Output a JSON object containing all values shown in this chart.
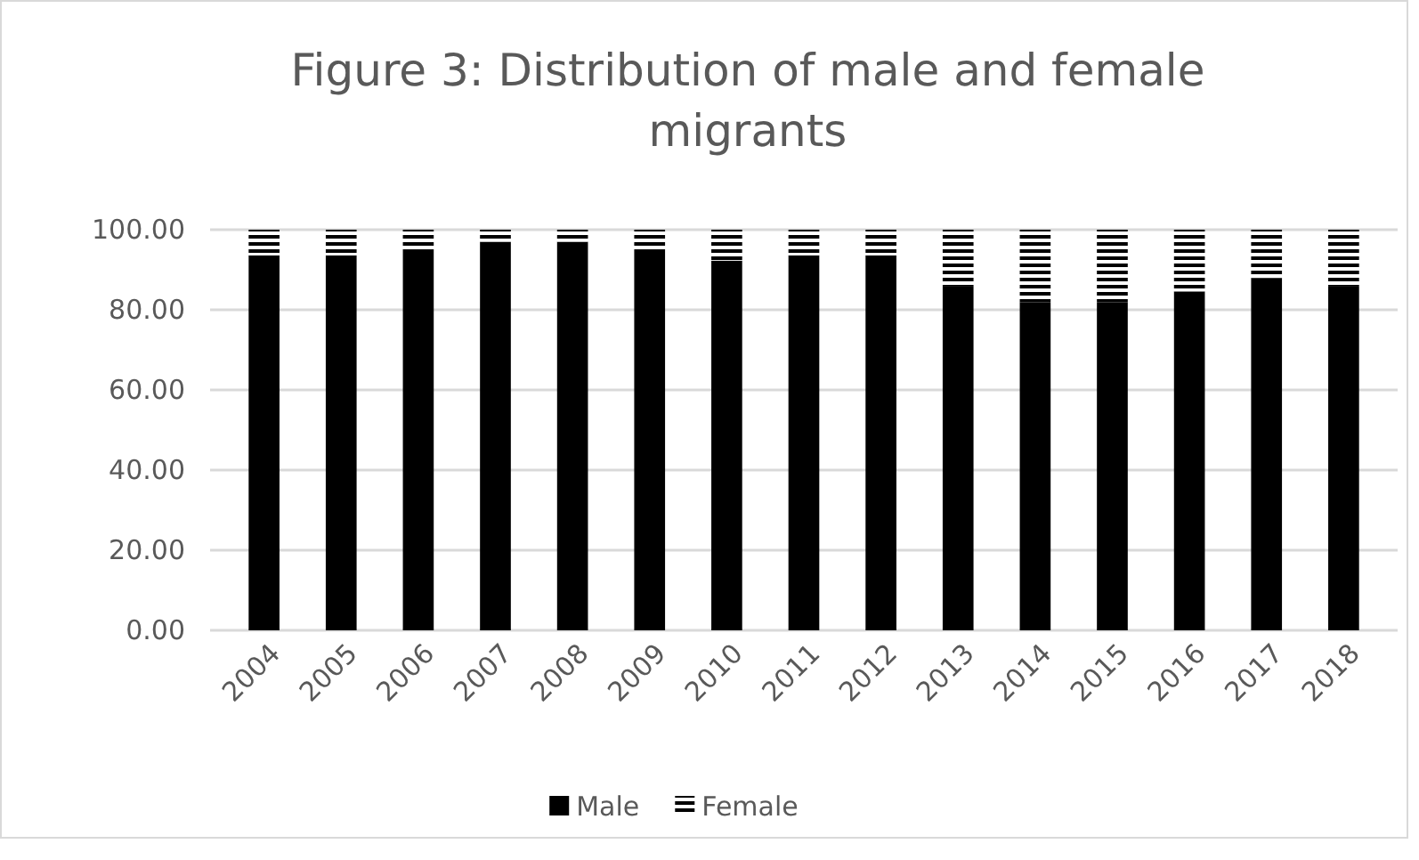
{
  "chart_data": {
    "type": "bar",
    "title": "Figure 3: Distribution of male and female migrants",
    "categories": [
      "2004",
      "2005",
      "2006",
      "2007",
      "2008",
      "2009",
      "2010",
      "2011",
      "2012",
      "2013",
      "2014",
      "2015",
      "2016",
      "2017",
      "2018"
    ],
    "series": [
      {
        "name": "Male",
        "color": "#000000",
        "values": [
          93.6,
          93.6,
          95.1,
          97.0,
          97.0,
          95.1,
          92.3,
          93.6,
          93.6,
          85.8,
          81.9,
          81.9,
          84.6,
          87.9,
          85.8
        ]
      },
      {
        "name": "Female",
        "color": "#000000",
        "values": [
          6.4,
          6.4,
          4.9,
          3.0,
          3.0,
          4.9,
          7.7,
          6.4,
          6.4,
          14.2,
          18.1,
          18.1,
          15.4,
          12.1,
          14.2
        ]
      }
    ],
    "stacked": true,
    "ylim": [
      0,
      100
    ],
    "yticks": [
      {
        "value": 0,
        "label": "0.00"
      },
      {
        "value": 20,
        "label": "20.00"
      },
      {
        "value": 40,
        "label": "40.00"
      },
      {
        "value": 60,
        "label": "60.00"
      },
      {
        "value": 80,
        "label": "80.00"
      },
      {
        "value": 100,
        "label": "100.00"
      }
    ],
    "grid": "y",
    "legend": "bottom"
  }
}
